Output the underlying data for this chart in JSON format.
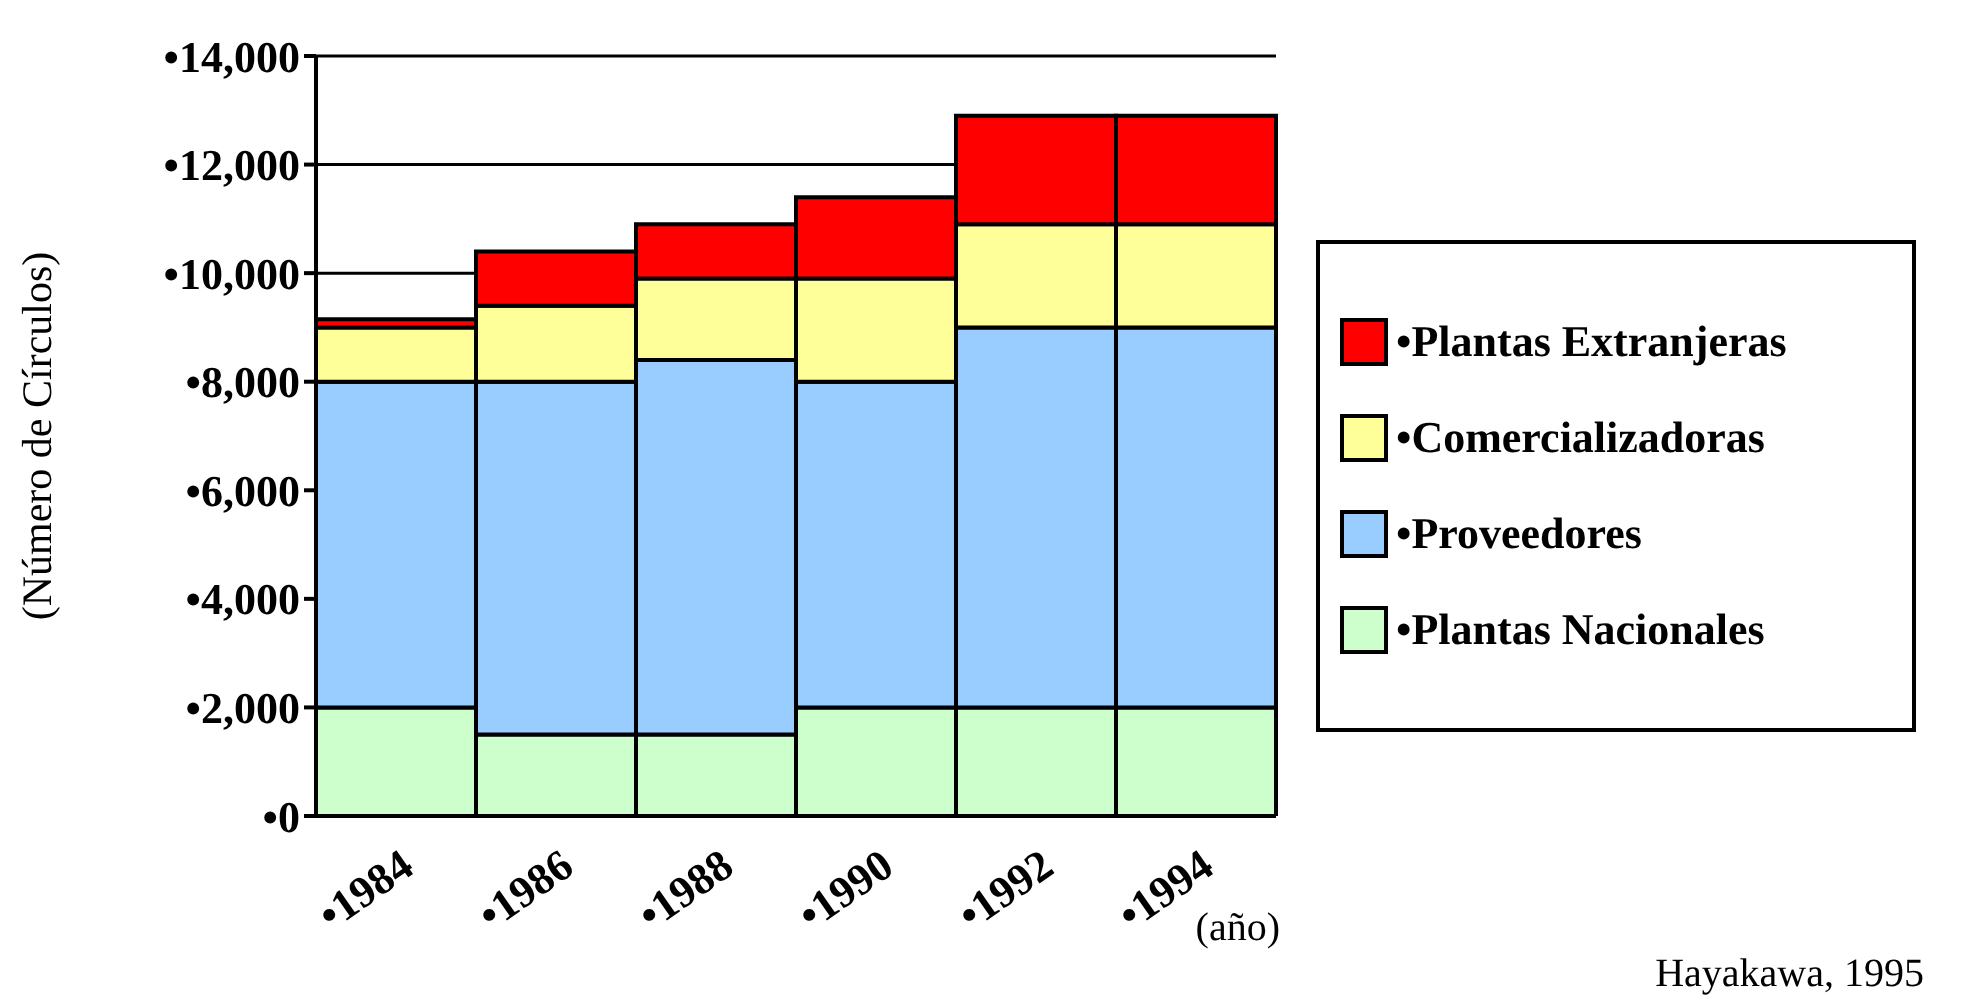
{
  "chart_data": {
    "type": "bar",
    "stacked": true,
    "ylabel": "(Número de Círculos)",
    "xlabel": "(año)",
    "categories": [
      "•1984",
      "•1986",
      "•1988",
      "•1990",
      "•1992",
      "•1994"
    ],
    "series": [
      {
        "name": "•Plantas Nacionales",
        "color": "#ccffcc",
        "values": [
          2000,
          1500,
          1500,
          2000,
          2000,
          2000
        ]
      },
      {
        "name": "•Proveedores",
        "color": "#99ccff",
        "values": [
          6000,
          6500,
          6900,
          6000,
          7000,
          7000
        ]
      },
      {
        "name": "•Comercializadoras",
        "color": "#ffff99",
        "values": [
          1000,
          1400,
          1500,
          1900,
          1900,
          1900
        ]
      },
      {
        "name": "•Plantas Extranjeras",
        "color": "#ff0000",
        "values": [
          150,
          1000,
          1000,
          1500,
          2000,
          2000
        ]
      }
    ],
    "ylim": [
      0,
      14000
    ],
    "yticks": [
      {
        "value": 0,
        "label": "•0"
      },
      {
        "value": 2000,
        "label": "•2,000"
      },
      {
        "value": 4000,
        "label": "•4,000"
      },
      {
        "value": 6000,
        "label": "•6,000"
      },
      {
        "value": 8000,
        "label": "•8,000"
      },
      {
        "value": 10000,
        "label": "•10,000"
      },
      {
        "value": 12000,
        "label": "•12,000"
      },
      {
        "value": 14000,
        "label": "•14,000"
      }
    ],
    "grid": "y",
    "legend": "right",
    "annotations": [
      "Hayakawa, 1995"
    ]
  }
}
